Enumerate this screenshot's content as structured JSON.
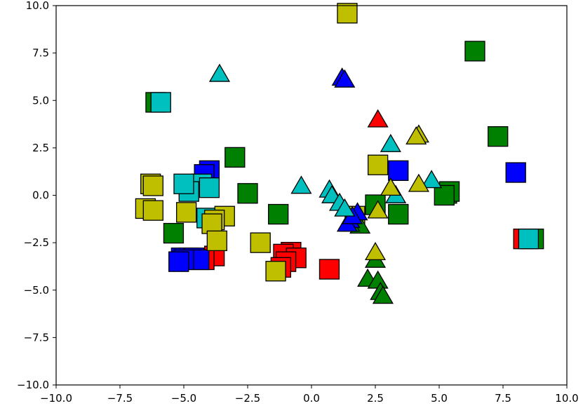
{
  "chart_data": {
    "type": "scatter",
    "title": "",
    "xlabel": "",
    "ylabel": "",
    "xlim": [
      -10,
      10
    ],
    "ylim": [
      -10,
      10
    ],
    "xticks": [
      -10,
      -7.5,
      -5,
      -2.5,
      0,
      2.5,
      5,
      7.5,
      10
    ],
    "yticks": [
      -10,
      -7.5,
      -5,
      -2.5,
      0,
      2.5,
      5,
      7.5,
      10
    ],
    "xtick_labels": [
      "−10.0",
      "−7.5",
      "−5.0",
      "−2.5",
      "0.0",
      "2.5",
      "5.0",
      "7.5",
      "10.0"
    ],
    "ytick_labels": [
      "−10.0",
      "−7.5",
      "−5.0",
      "−2.5",
      "0.0",
      "2.5",
      "5.0",
      "7.5",
      "10.0"
    ],
    "grid": false,
    "legend": "none",
    "colors": {
      "red": "#ff0000",
      "green": "#008000",
      "blue": "#0000ff",
      "cyan": "#00bfbf",
      "yellow": "#bfbf00",
      "edge": "#000000"
    },
    "series": [
      {
        "marker": "square",
        "color": "red",
        "points": [
          [
            -3.8,
            -3.2
          ],
          [
            -4.2,
            -3.4
          ],
          [
            -4.8,
            -3.3
          ],
          [
            -0.8,
            -3.0
          ],
          [
            -1.1,
            -3.1
          ],
          [
            -0.6,
            -3.3
          ],
          [
            -1.0,
            -3.5
          ],
          [
            -1.2,
            -3.8
          ],
          [
            0.7,
            -3.9
          ],
          [
            8.3,
            -2.3
          ]
        ]
      },
      {
        "marker": "square",
        "color": "green",
        "points": [
          [
            -6.1,
            4.9
          ],
          [
            -3.0,
            2.0
          ],
          [
            -2.5,
            0.1
          ],
          [
            -1.3,
            -1.0
          ],
          [
            -5.4,
            -2.0
          ],
          [
            2.5,
            -0.5
          ],
          [
            3.4,
            -1.0
          ],
          [
            5.3,
            0.1
          ],
          [
            5.4,
            0.2
          ],
          [
            5.2,
            0.0
          ],
          [
            6.4,
            7.6
          ],
          [
            7.3,
            3.1
          ],
          [
            8.7,
            -2.3
          ]
        ]
      },
      {
        "marker": "square",
        "color": "blue",
        "points": [
          [
            -4.0,
            1.3
          ],
          [
            -4.2,
            1.1
          ],
          [
            -5.1,
            -3.3
          ],
          [
            -4.6,
            -3.3
          ],
          [
            -4.4,
            -3.4
          ],
          [
            -5.0,
            -3.4
          ],
          [
            -5.2,
            -3.5
          ],
          [
            3.4,
            1.3
          ],
          [
            8.0,
            1.2
          ]
        ]
      },
      {
        "marker": "square",
        "color": "cyan",
        "points": [
          [
            -5.9,
            4.9
          ],
          [
            -4.8,
            0.5
          ],
          [
            -4.5,
            0.5
          ],
          [
            -4.3,
            0.6
          ],
          [
            -4.8,
            0.2
          ],
          [
            -4.0,
            0.4
          ],
          [
            -5.0,
            0.6
          ],
          [
            -4.1,
            -1.2
          ],
          [
            8.5,
            -2.3
          ]
        ]
      },
      {
        "marker": "square",
        "color": "yellow",
        "points": [
          [
            1.4,
            9.6
          ],
          [
            -6.3,
            0.6
          ],
          [
            -6.2,
            0.5
          ],
          [
            -6.5,
            -0.7
          ],
          [
            -6.2,
            -0.8
          ],
          [
            -4.9,
            -0.9
          ],
          [
            -3.4,
            -1.1
          ],
          [
            -3.8,
            -1.3
          ],
          [
            -3.9,
            -1.5
          ],
          [
            -3.7,
            -2.4
          ],
          [
            -2.0,
            -2.5
          ],
          [
            -1.4,
            -4.0
          ],
          [
            2.6,
            1.6
          ],
          [
            1.7,
            -1.1
          ]
        ]
      },
      {
        "marker": "triangle",
        "color": "red",
        "points": [
          [
            2.6,
            3.9
          ]
        ]
      },
      {
        "marker": "triangle",
        "color": "green",
        "points": [
          [
            2.5,
            -3.5
          ],
          [
            2.2,
            -4.5
          ],
          [
            2.6,
            -4.6
          ],
          [
            2.7,
            -5.2
          ],
          [
            2.8,
            -5.4
          ],
          [
            1.9,
            -1.7
          ],
          [
            1.5,
            -1.6
          ]
        ]
      },
      {
        "marker": "triangle",
        "color": "blue",
        "points": [
          [
            1.2,
            6.1
          ],
          [
            1.3,
            6.0
          ],
          [
            1.8,
            -1.0
          ],
          [
            1.5,
            -1.4
          ],
          [
            1.4,
            -1.6
          ],
          [
            1.6,
            -1.2
          ]
        ]
      },
      {
        "marker": "triangle",
        "color": "cyan",
        "points": [
          [
            -3.6,
            6.3
          ],
          [
            -0.4,
            0.4
          ],
          [
            0.7,
            0.2
          ],
          [
            0.8,
            -0.1
          ],
          [
            1.1,
            -0.5
          ],
          [
            1.3,
            -0.8
          ],
          [
            3.1,
            2.6
          ],
          [
            3.3,
            -0.1
          ],
          [
            4.7,
            0.7
          ]
        ]
      },
      {
        "marker": "triangle",
        "color": "yellow",
        "points": [
          [
            4.2,
            3.1
          ],
          [
            4.1,
            3.0
          ],
          [
            3.1,
            0.3
          ],
          [
            4.2,
            0.5
          ],
          [
            2.6,
            -0.9
          ],
          [
            2.5,
            -3.1
          ]
        ]
      }
    ]
  }
}
